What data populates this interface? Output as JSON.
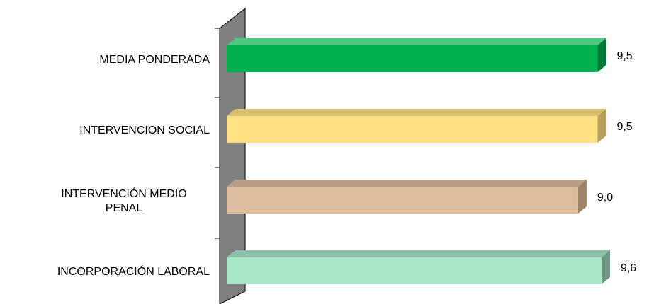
{
  "chart_data": {
    "type": "bar",
    "orientation": "horizontal",
    "style": "3d",
    "categories": [
      "MEDIA PONDERADA",
      "INTERVENCION SOCIAL",
      "INTERVENCIÓN MEDIO PENAL",
      "INCORPORACIÓN LABORAL"
    ],
    "category_lines": [
      [
        "MEDIA PONDERADA"
      ],
      [
        "INTERVENCION SOCIAL"
      ],
      [
        "INTERVENCIÓN MEDIO",
        "PENAL"
      ],
      [
        "INCORPORACIÓN LABORAL"
      ]
    ],
    "values": [
      9.5,
      9.5,
      9.0,
      9.6
    ],
    "value_labels": [
      "9,5",
      "9,5",
      "9,0",
      "9,6"
    ],
    "bar_colors": [
      "#00B050",
      "#FFE083",
      "#DEBD9A",
      "#A8E6C8"
    ],
    "bar_top_colors": [
      "#4DC97F",
      "#D8BF6C",
      "#B89E82",
      "#8DC2A6"
    ],
    "bar_side_colors": [
      "#007A38",
      "#B8A060",
      "#9C8468",
      "#6F9A84"
    ],
    "wall_color": "#808080",
    "title": "",
    "xlabel": "",
    "ylabel": "",
    "axis_visible": false,
    "legend": "none",
    "grid": false
  }
}
